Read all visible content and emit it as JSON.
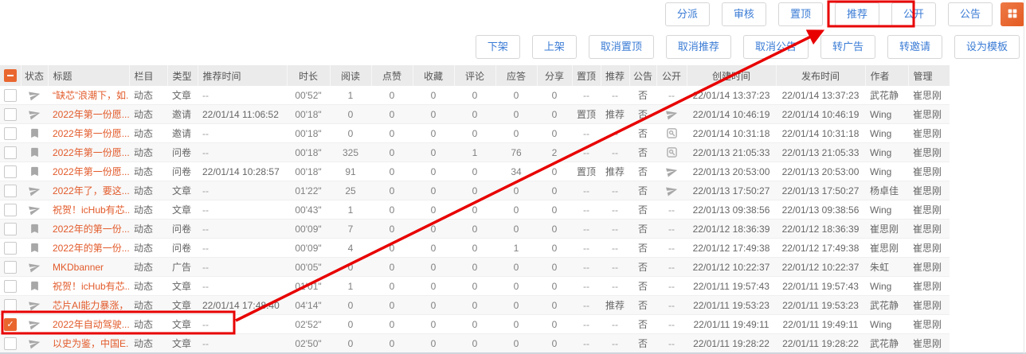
{
  "toolbar": {
    "primary": [
      "分派",
      "审核",
      "置顶",
      "推荐",
      "公开",
      "公告"
    ],
    "secondary": [
      "下架",
      "上架",
      "取消置顶",
      "取消推荐",
      "取消公告",
      "转广告",
      "转邀请",
      "设为模板"
    ],
    "apps_button_icon": "grid-icon"
  },
  "table": {
    "headers": [
      "状态",
      "标题",
      "栏目",
      "类型",
      "推荐时间",
      "时长",
      "阅读",
      "点赞",
      "收藏",
      "评论",
      "应答",
      "分享",
      "置顶",
      "推荐",
      "公告",
      "公开",
      "创建时间",
      "发布时间",
      "作者",
      "管理"
    ],
    "select_all_state": "indeterminate",
    "rows": [
      {
        "checked": false,
        "status": "send",
        "title": "“缺芯”浪潮下，如...",
        "column": "动态",
        "type": "文章",
        "rec_time": "--",
        "duration": "00'52\"",
        "reads": "1",
        "likes": "0",
        "favs": "0",
        "comments": "0",
        "answers": "0",
        "shares": "0",
        "top": "--",
        "recommend": "--",
        "notice": "否",
        "pub": "--",
        "created": "22/01/14 13:37:23",
        "published": "22/01/14 13:37:23",
        "author": "武花静",
        "manager": "崔思刚"
      },
      {
        "checked": false,
        "status": "send",
        "title": "2022年第一份愿...",
        "column": "动态",
        "type": "邀请",
        "rec_time": "22/01/14 11:06:52",
        "duration": "00'18\"",
        "reads": "0",
        "likes": "0",
        "favs": "0",
        "comments": "0",
        "answers": "0",
        "shares": "0",
        "top": "置顶",
        "recommend": "推荐",
        "notice": "否",
        "pub": "send",
        "created": "22/01/14 10:46:19",
        "published": "22/01/14 10:46:19",
        "author": "Wing",
        "manager": "崔思刚"
      },
      {
        "checked": false,
        "status": "bookmark",
        "title": "2022年第一份愿...",
        "column": "动态",
        "type": "邀请",
        "rec_time": "--",
        "duration": "00'18\"",
        "reads": "0",
        "likes": "0",
        "favs": "0",
        "comments": "0",
        "answers": "0",
        "shares": "0",
        "top": "--",
        "recommend": "--",
        "notice": "否",
        "pub": "preview",
        "created": "22/01/14 10:31:18",
        "published": "22/01/14 10:31:18",
        "author": "Wing",
        "manager": "崔思刚"
      },
      {
        "checked": false,
        "status": "bookmark",
        "title": "2022年第一份愿...",
        "column": "动态",
        "type": "问卷",
        "rec_time": "--",
        "duration": "00'18\"",
        "reads": "325",
        "likes": "0",
        "favs": "0",
        "comments": "1",
        "answers": "76",
        "shares": "2",
        "top": "--",
        "recommend": "--",
        "notice": "否",
        "pub": "preview",
        "created": "22/01/13 21:05:33",
        "published": "22/01/13 21:05:33",
        "author": "Wing",
        "manager": "崔思刚"
      },
      {
        "checked": false,
        "status": "bookmark",
        "title": "2022年第一份愿...",
        "column": "动态",
        "type": "问卷",
        "rec_time": "22/01/14 10:28:57",
        "duration": "00'18\"",
        "reads": "91",
        "likes": "0",
        "favs": "0",
        "comments": "0",
        "answers": "34",
        "shares": "0",
        "top": "置顶",
        "recommend": "推荐",
        "notice": "否",
        "pub": "send",
        "created": "22/01/13 20:53:00",
        "published": "22/01/13 20:53:00",
        "author": "Wing",
        "manager": "崔思刚"
      },
      {
        "checked": false,
        "status": "send",
        "title": "2022年了，要这...",
        "column": "动态",
        "type": "文章",
        "rec_time": "--",
        "duration": "01'22\"",
        "reads": "25",
        "likes": "0",
        "favs": "0",
        "comments": "0",
        "answers": "0",
        "shares": "0",
        "top": "--",
        "recommend": "--",
        "notice": "否",
        "pub": "send",
        "created": "22/01/13 17:50:27",
        "published": "22/01/13 17:50:27",
        "author": "杨卓佳",
        "manager": "崔思刚"
      },
      {
        "checked": false,
        "status": "send",
        "title": "祝贺！icHub有芯...",
        "column": "动态",
        "type": "文章",
        "rec_time": "--",
        "duration": "00'43\"",
        "reads": "1",
        "likes": "0",
        "favs": "0",
        "comments": "0",
        "answers": "0",
        "shares": "0",
        "top": "--",
        "recommend": "--",
        "notice": "否",
        "pub": "--",
        "created": "22/01/13 09:38:56",
        "published": "22/01/13 09:38:56",
        "author": "Wing",
        "manager": "崔思刚"
      },
      {
        "checked": false,
        "status": "bookmark",
        "title": "2022年的第一份...",
        "column": "动态",
        "type": "问卷",
        "rec_time": "--",
        "duration": "00'09\"",
        "reads": "7",
        "likes": "0",
        "favs": "0",
        "comments": "0",
        "answers": "0",
        "shares": "0",
        "top": "--",
        "recommend": "--",
        "notice": "否",
        "pub": "--",
        "created": "22/01/12 18:36:39",
        "published": "22/01/12 18:36:39",
        "author": "崔思刚",
        "manager": "崔思刚"
      },
      {
        "checked": false,
        "status": "bookmark",
        "title": "2022年的第一份...",
        "column": "动态",
        "type": "问卷",
        "rec_time": "--",
        "duration": "00'09\"",
        "reads": "4",
        "likes": "0",
        "favs": "0",
        "comments": "0",
        "answers": "1",
        "shares": "0",
        "top": "--",
        "recommend": "--",
        "notice": "否",
        "pub": "--",
        "created": "22/01/12 17:49:38",
        "published": "22/01/12 17:49:38",
        "author": "崔思刚",
        "manager": "崔思刚"
      },
      {
        "checked": false,
        "status": "send",
        "title": "MKDbanner",
        "column": "动态",
        "type": "广告",
        "rec_time": "--",
        "duration": "00'05\"",
        "reads": "0",
        "likes": "0",
        "favs": "0",
        "comments": "0",
        "answers": "0",
        "shares": "0",
        "top": "--",
        "recommend": "--",
        "notice": "否",
        "pub": "--",
        "created": "22/01/12 10:22:37",
        "published": "22/01/12 10:22:37",
        "author": "朱虹",
        "manager": "崔思刚"
      },
      {
        "checked": false,
        "status": "bookmark",
        "title": "祝贺！icHub有芯...",
        "column": "动态",
        "type": "文章",
        "rec_time": "--",
        "duration": "01'01\"",
        "reads": "1",
        "likes": "0",
        "favs": "0",
        "comments": "0",
        "answers": "0",
        "shares": "0",
        "top": "--",
        "recommend": "--",
        "notice": "否",
        "pub": "--",
        "created": "22/01/11 19:57:43",
        "published": "22/01/11 19:57:43",
        "author": "Wing",
        "manager": "崔思刚"
      },
      {
        "checked": false,
        "status": "send",
        "title": "芯片AI能力暴涨，...",
        "column": "动态",
        "type": "文章",
        "rec_time": "22/01/14 17:48:40",
        "duration": "04'14\"",
        "reads": "0",
        "likes": "0",
        "favs": "0",
        "comments": "0",
        "answers": "0",
        "shares": "0",
        "top": "--",
        "recommend": "推荐",
        "notice": "否",
        "pub": "--",
        "created": "22/01/11 19:53:23",
        "published": "22/01/11 19:53:23",
        "author": "武花静",
        "manager": "崔思刚"
      },
      {
        "checked": true,
        "status": "send",
        "title": "2022年自动驾驶...",
        "column": "动态",
        "type": "文章",
        "rec_time": "--",
        "duration": "02'52\"",
        "reads": "0",
        "likes": "0",
        "favs": "0",
        "comments": "0",
        "answers": "0",
        "shares": "0",
        "top": "--",
        "recommend": "--",
        "notice": "否",
        "pub": "--",
        "created": "22/01/11 19:49:11",
        "published": "22/01/11 19:49:11",
        "author": "Wing",
        "manager": "崔思刚"
      },
      {
        "checked": false,
        "status": "send",
        "title": "以史为鉴，中国E...",
        "column": "动态",
        "type": "文章",
        "rec_time": "--",
        "duration": "02'50\"",
        "reads": "0",
        "likes": "0",
        "favs": "0",
        "comments": "0",
        "answers": "0",
        "shares": "0",
        "top": "--",
        "recommend": "--",
        "notice": "否",
        "pub": "--",
        "created": "22/01/11 19:28:22",
        "published": "22/01/11 19:28:22",
        "author": "武花静",
        "manager": "崔思刚"
      }
    ]
  },
  "annotations": {
    "box_buttons_target": "置顶 推荐",
    "box_row_target": "2022年自动驾驶... (selected row)",
    "arrow": "from selected row to 置顶/推荐 buttons"
  },
  "colors": {
    "accent_orange": "#e9662f",
    "link_orange": "#e25a2a",
    "button_blue": "#3a7bd5",
    "header_bg": "#ebebeb",
    "annotation_red": "#e80000"
  }
}
